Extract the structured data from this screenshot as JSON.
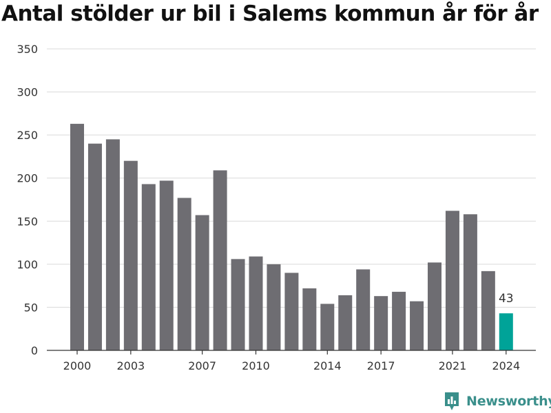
{
  "title": "Antal stölder ur bil i Salems kommun år för år",
  "brand": {
    "name": "Newsworthy",
    "color": "#3a8f8b"
  },
  "colors": {
    "bar": "#6e6d72",
    "highlight": "#00a398",
    "grid": "#d9d9d9",
    "axis": "#333333",
    "text": "#333333"
  },
  "chart_data": {
    "type": "bar",
    "title": "Antal stölder ur bil i Salems kommun år för år",
    "xlabel": "",
    "ylabel": "",
    "ylim": [
      0,
      350
    ],
    "yticks": [
      0,
      50,
      100,
      150,
      200,
      250,
      300,
      350
    ],
    "xticks": [
      "2000",
      "2003",
      "2007",
      "2010",
      "2014",
      "2017",
      "2021",
      "2024"
    ],
    "categories": [
      "2000",
      "2001",
      "2002",
      "2003",
      "2004",
      "2005",
      "2006",
      "2007",
      "2008",
      "2009",
      "2010",
      "2011",
      "2012",
      "2013",
      "2014",
      "2015",
      "2016",
      "2017",
      "2018",
      "2019",
      "2020",
      "2021",
      "2022",
      "2023",
      "2024"
    ],
    "values": [
      263,
      240,
      245,
      220,
      193,
      197,
      177,
      157,
      209,
      106,
      109,
      100,
      90,
      72,
      54,
      64,
      94,
      63,
      68,
      57,
      102,
      162,
      158,
      92,
      43
    ],
    "highlight": {
      "category": "2024",
      "label": "43"
    },
    "grid": true,
    "legend": "none"
  }
}
